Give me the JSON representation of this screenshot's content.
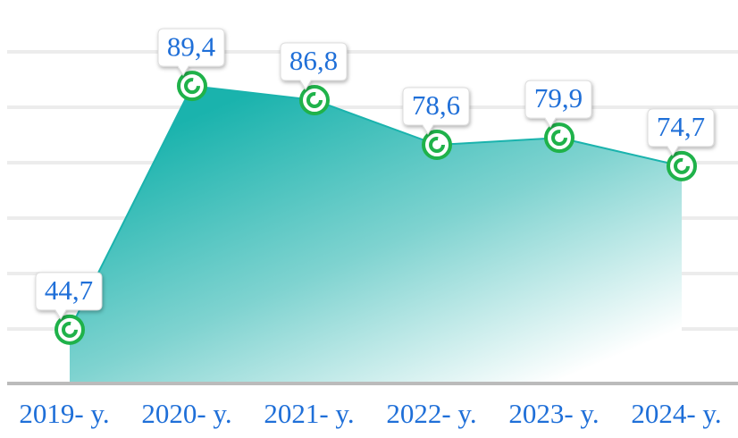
{
  "chart_data": {
    "type": "area",
    "categories": [
      "2019- y.",
      "2020- y.",
      "2021- y.",
      "2022- y.",
      "2023- y.",
      "2024- y."
    ],
    "values": [
      44.7,
      89.4,
      86.8,
      78.6,
      79.9,
      74.7
    ],
    "value_labels": [
      "44,7",
      "89,4",
      "86,8",
      "78,6",
      "79,9",
      "74,7"
    ],
    "color": "#1ab3ad",
    "ylim": [
      35,
      105
    ],
    "grid": true
  }
}
